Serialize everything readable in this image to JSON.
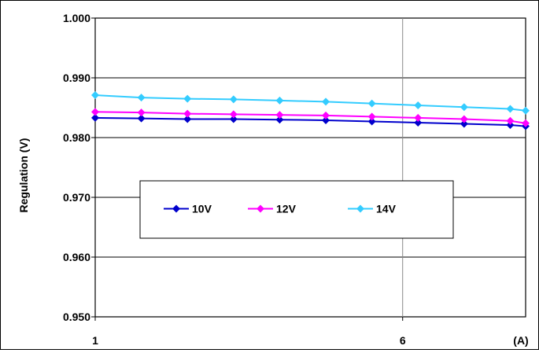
{
  "chart_data": {
    "type": "line",
    "title": "",
    "xlabel": "(A)",
    "ylabel": "Regulation (V)",
    "xlim": [
      1,
      8
    ],
    "ylim": [
      0.95,
      1.0
    ],
    "x_ticks": [
      1,
      6
    ],
    "x_tick_labels": [
      "1",
      "6"
    ],
    "y_ticks": [
      0.95,
      0.96,
      0.97,
      0.98,
      0.99,
      1.0
    ],
    "y_tick_labels": [
      "0.950",
      "0.960",
      "0.970",
      "0.980",
      "0.990",
      "1.000"
    ],
    "grid": true,
    "legend_position": "center-left, boxed, horizontal",
    "series": [
      {
        "name": "10V",
        "color": "#0000CC",
        "marker": "diamond",
        "x": [
          1,
          1.75,
          2.5,
          3.25,
          4.0,
          4.75,
          5.5,
          6.25,
          7.0,
          7.75,
          8.0
        ],
        "values": [
          0.9833,
          0.9832,
          0.9831,
          0.9831,
          0.983,
          0.9829,
          0.9827,
          0.9825,
          0.9823,
          0.9821,
          0.9819
        ]
      },
      {
        "name": "12V",
        "color": "#FF00FF",
        "marker": "diamond",
        "x": [
          1,
          1.75,
          2.5,
          3.25,
          4.0,
          4.75,
          5.5,
          6.25,
          7.0,
          7.75,
          8.0
        ],
        "values": [
          0.9843,
          0.9842,
          0.984,
          0.9839,
          0.9838,
          0.9837,
          0.9835,
          0.9833,
          0.9831,
          0.9828,
          0.9824
        ]
      },
      {
        "name": "14V",
        "color": "#33CCFF",
        "marker": "diamond",
        "x": [
          1,
          1.75,
          2.5,
          3.25,
          4.0,
          4.75,
          5.5,
          6.25,
          7.0,
          7.75,
          8.0
        ],
        "values": [
          0.9871,
          0.9867,
          0.9865,
          0.9864,
          0.9862,
          0.986,
          0.9857,
          0.9854,
          0.9851,
          0.9848,
          0.9845
        ]
      }
    ]
  }
}
